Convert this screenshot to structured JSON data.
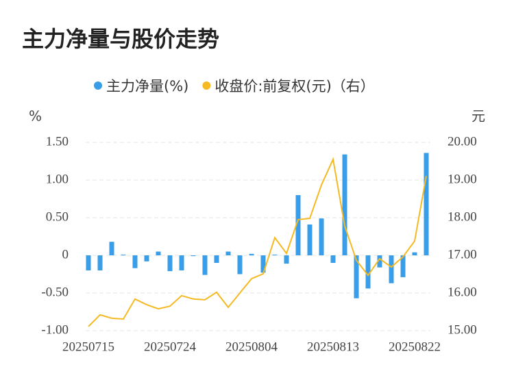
{
  "chart_data": {
    "type": "bar_line",
    "title": "主力净量与股价走势",
    "y_label": "%",
    "y2_label": "元",
    "categories": [
      "20250715",
      null,
      null,
      null,
      null,
      null,
      null,
      "20250724",
      null,
      null,
      null,
      null,
      null,
      null,
      "20250804",
      null,
      null,
      null,
      null,
      null,
      null,
      "20250813",
      null,
      null,
      null,
      null,
      null,
      null,
      "20250822",
      null
    ],
    "series": [
      {
        "name": "主力净量(%)",
        "color": "#3a9de8",
        "type": "bar",
        "values": [
          -0.2,
          -0.2,
          0.18,
          0.01,
          -0.17,
          -0.08,
          0.05,
          -0.21,
          -0.2,
          -0.01,
          -0.26,
          -0.1,
          0.05,
          -0.25,
          0.02,
          -0.23,
          0.01,
          -0.11,
          0.8,
          0.41,
          0.49,
          -0.1,
          1.34,
          -0.57,
          -0.44,
          -0.16,
          -0.37,
          -0.29,
          0.04,
          1.36
        ]
      },
      {
        "name": "收盘价:前复权(元)（右）",
        "color": "#f5b922",
        "type": "line",
        "axis": "y2",
        "values": [
          15.11,
          15.42,
          15.33,
          15.31,
          15.84,
          15.69,
          15.58,
          15.65,
          15.93,
          15.84,
          15.82,
          16.02,
          15.62,
          16.0,
          16.38,
          16.51,
          17.47,
          17.05,
          17.95,
          17.98,
          18.87,
          19.55,
          17.78,
          16.87,
          16.47,
          16.91,
          16.69,
          16.96,
          17.38,
          19.11
        ]
      }
    ],
    "ylim": [
      -1,
      1.5
    ],
    "yticks": [
      {
        "value": 1.5,
        "label": "1.50"
      },
      {
        "value": 1,
        "label": "1.00"
      },
      {
        "value": 0.5,
        "label": "0.50"
      },
      0,
      {
        "value": -0.5,
        "label": "-0.50"
      },
      {
        "value": -1,
        "label": "-1.00"
      }
    ],
    "y2lim": [
      15,
      20
    ],
    "y2ticks": [
      {
        "value": 20,
        "label": "20.00"
      },
      {
        "value": 19,
        "label": "19.00"
      },
      {
        "value": 18,
        "label": "18.00"
      },
      {
        "value": 17,
        "label": "17.00"
      },
      {
        "value": 16,
        "label": "16.00"
      },
      {
        "value": 15,
        "label": "15.00"
      }
    ],
    "grid": true,
    "legend": "top"
  }
}
